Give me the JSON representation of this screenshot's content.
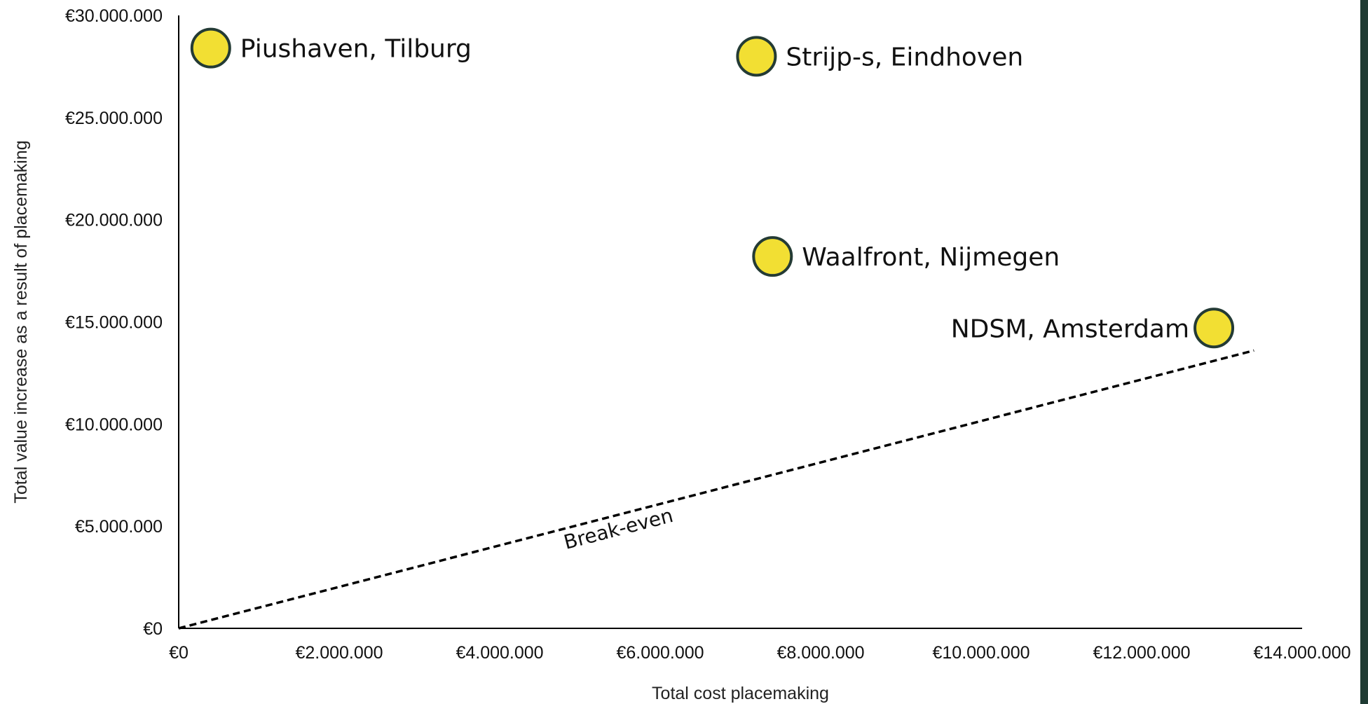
{
  "chart_data": {
    "type": "scatter",
    "title": "",
    "xlabel": "Total cost placemaking",
    "ylabel": "Total value increase as a result of placemaking",
    "xlim": [
      0,
      14000000
    ],
    "ylim": [
      0,
      30000000
    ],
    "x_ticks": [
      0,
      2000000,
      4000000,
      6000000,
      8000000,
      10000000,
      12000000,
      14000000
    ],
    "x_tick_labels": [
      "€0",
      "€2.000.000",
      "€4.000.000",
      "€6.000.000",
      "€8.000.000",
      "€10.000.000",
      "€12.000.000",
      "€14.000.000"
    ],
    "y_ticks": [
      0,
      5000000,
      10000000,
      15000000,
      20000000,
      25000000,
      30000000
    ],
    "y_tick_labels": [
      "€0",
      "€5.000.000",
      "€10.000.000",
      "€15.000.000",
      "€20.000.000",
      "€25.000.000",
      "€30.000.000"
    ],
    "grid": false,
    "legend": "none",
    "points": [
      {
        "label": "Piushaven, Tilburg",
        "x": 400000,
        "y": 28400000,
        "label_side": "right"
      },
      {
        "label": "Strijp-s, Eindhoven",
        "x": 7200000,
        "y": 28000000,
        "label_side": "right"
      },
      {
        "label": "Waalfront, Nijmegen",
        "x": 7400000,
        "y": 18200000,
        "label_side": "right"
      },
      {
        "label": "NDSM, Amsterdam",
        "x": 12900000,
        "y": 14700000,
        "label_side": "left"
      }
    ],
    "reference_line": {
      "label": "Break-even",
      "x": [
        0,
        13400000
      ],
      "y": [
        0,
        13600000
      ],
      "style": "dashed"
    },
    "colors": {
      "marker_fill": "#F2DF33",
      "marker_stroke": "#243B35",
      "axis": "#000000",
      "line": "#000000",
      "edge_stripe": "#1F3B33"
    }
  }
}
